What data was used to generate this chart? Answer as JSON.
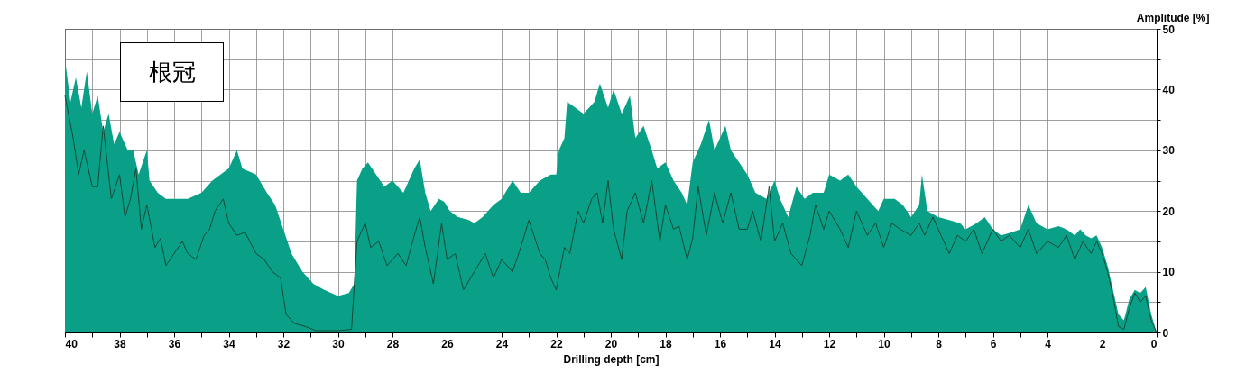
{
  "chart_data": {
    "type": "line",
    "xlabel": "Drilling depth [cm]",
    "ylabel": "Amplitude [%]",
    "annotations": [
      "根冠"
    ],
    "xlim": [
      40,
      0
    ],
    "ylim": [
      0,
      50
    ],
    "xticks": [
      40,
      {
        "value": 39,
        "label": null
      },
      38,
      {
        "value": 37,
        "label": null
      },
      36,
      {
        "value": 35,
        "label": null
      },
      34,
      {
        "value": 33,
        "label": null
      },
      32,
      {
        "value": 31,
        "label": null
      },
      30,
      {
        "value": 29,
        "label": null
      },
      28,
      {
        "value": 27,
        "label": null
      },
      26,
      {
        "value": 25,
        "label": null
      },
      24,
      {
        "value": 23,
        "label": null
      },
      22,
      {
        "value": 21,
        "label": null
      },
      20,
      {
        "value": 19,
        "label": null
      },
      18,
      {
        "value": 17,
        "label": null
      },
      16,
      {
        "value": 15,
        "label": null
      },
      14,
      {
        "value": 13,
        "label": null
      },
      12,
      {
        "value": 11,
        "label": null
      },
      10,
      {
        "value": 9,
        "label": null
      },
      8,
      {
        "value": 7,
        "label": null
      },
      6,
      {
        "value": 5,
        "label": null
      },
      4,
      {
        "value": 3,
        "label": null
      },
      2,
      {
        "value": 1,
        "label": null
      },
      0
    ],
    "yticks": [
      0,
      {
        "value": 5,
        "label": null
      },
      10,
      {
        "value": 15,
        "label": null
      },
      20,
      {
        "value": 25,
        "label": null
      },
      30,
      {
        "value": 35,
        "label": null
      },
      40,
      {
        "value": 45,
        "label": null
      },
      50
    ],
    "grid": true,
    "series": [
      {
        "type": "area",
        "color": "#09a087",
        "x": [
          40,
          39.8,
          39.6,
          39.4,
          39.2,
          39,
          38.8,
          38.6,
          38.4,
          38.2,
          38,
          37.7,
          37.5,
          37.3,
          37,
          36.9,
          36.6,
          36.3,
          36,
          35.5,
          35,
          34.6,
          34.3,
          34,
          33.7,
          33.5,
          33,
          32.6,
          32.3,
          32,
          31.7,
          31.3,
          30.9,
          30.5,
          30,
          29.6,
          29.4,
          29.3,
          29.1,
          28.9,
          28.6,
          28.3,
          28,
          27.6,
          27.4,
          27.2,
          27,
          26.8,
          26.6,
          26.3,
          26.1,
          25.9,
          25.6,
          25.2,
          25,
          24.7,
          24.3,
          24,
          23.6,
          23.3,
          23,
          22.6,
          22.2,
          22,
          21.9,
          21.7,
          21.6,
          21.3,
          21,
          20.6,
          20.4,
          20.1,
          19.9,
          19.6,
          19.3,
          19.1,
          18.8,
          18.5,
          18.3,
          18,
          17.7,
          17.4,
          17.2,
          17,
          16.7,
          16.4,
          16.2,
          15.8,
          15.6,
          15.3,
          15,
          14.7,
          14.3,
          14,
          13.8,
          13.5,
          13.2,
          12.9,
          12.6,
          12.2,
          12,
          11.6,
          11.3,
          11,
          10.6,
          10.2,
          10,
          9.6,
          9.3,
          9,
          8.7,
          8.6,
          8.4,
          8,
          7.6,
          7.2,
          7,
          6.6,
          6.3,
          6,
          5.7,
          5.3,
          5,
          4.7,
          4.4,
          4,
          3.6,
          3.3,
          3,
          2.8,
          2.6,
          2.4,
          2.2,
          2,
          1.8,
          1.6,
          1.4,
          1.2,
          1,
          0.8,
          0.6,
          0.4,
          0.2,
          0
        ],
        "values": [
          45,
          38,
          42,
          37,
          43,
          36,
          39,
          33,
          36,
          31,
          33,
          30,
          30,
          26,
          30,
          25,
          23,
          22,
          22,
          22,
          23,
          25,
          26,
          27,
          30,
          27,
          26,
          23,
          21,
          17,
          13,
          10,
          8,
          7,
          6,
          6.5,
          8,
          25,
          27,
          28,
          26,
          24,
          25,
          23,
          25,
          27,
          28.5,
          23,
          20,
          22,
          21.5,
          20,
          19,
          18.5,
          18,
          19,
          21,
          22,
          25,
          23,
          23,
          25,
          26,
          26,
          30,
          32,
          38,
          37,
          36,
          38,
          41,
          37,
          40,
          36,
          39,
          32,
          34,
          30,
          27,
          28,
          25,
          23,
          21,
          28,
          31,
          35,
          30,
          34,
          30,
          28,
          26,
          23,
          22,
          25,
          22,
          19,
          24,
          22,
          23,
          23,
          26,
          25,
          26,
          24,
          22,
          20,
          22,
          22,
          21,
          19,
          21,
          26,
          20,
          19,
          18.5,
          18,
          17,
          18,
          19,
          17,
          16,
          16.5,
          17,
          21,
          18,
          17,
          17.5,
          17,
          16,
          17,
          16,
          15.5,
          16,
          14,
          11,
          7,
          3,
          2,
          5.5,
          7,
          6.5,
          7.5,
          3,
          0
        ]
      },
      {
        "color": "#17402f",
        "x": [
          40,
          39.7,
          39.5,
          39.3,
          39,
          38.8,
          38.6,
          38.3,
          38,
          37.8,
          37.6,
          37.4,
          37.2,
          37,
          36.7,
          36.5,
          36.3,
          36,
          35.7,
          35.5,
          35.2,
          34.9,
          34.7,
          34.5,
          34.2,
          34,
          33.7,
          33.4,
          33,
          32.7,
          32.4,
          32.1,
          31.9,
          31.6,
          31.2,
          30.8,
          30,
          29.5,
          29.3,
          29,
          28.8,
          28.5,
          28.2,
          27.8,
          27.5,
          27.2,
          27,
          26.8,
          26.5,
          26.2,
          26,
          25.7,
          25.4,
          25,
          24.6,
          24.3,
          24,
          23.6,
          23.3,
          23,
          22.6,
          22.4,
          22.2,
          22,
          21.7,
          21.5,
          21.2,
          21,
          20.7,
          20.5,
          20.3,
          20.1,
          19.9,
          19.6,
          19.4,
          19.1,
          18.8,
          18.5,
          18.2,
          18,
          17.7,
          17.5,
          17.2,
          17,
          16.8,
          16.5,
          16.2,
          15.9,
          15.6,
          15.3,
          15,
          14.8,
          14.5,
          14.2,
          14,
          13.7,
          13.4,
          13,
          12.7,
          12.5,
          12.2,
          12,
          11.6,
          11.3,
          11,
          10.6,
          10.3,
          10,
          9.7,
          9.4,
          9,
          8.7,
          8.5,
          8.2,
          8,
          7.6,
          7.3,
          7,
          6.7,
          6.4,
          6,
          5.7,
          5.4,
          5,
          4.7,
          4.4,
          4,
          3.6,
          3.3,
          3,
          2.7,
          2.4,
          2.2,
          2,
          1.8,
          1.6,
          1.4,
          1.2,
          1,
          0.8,
          0.6,
          0.4,
          0.2,
          0
        ],
        "values": [
          39,
          32,
          26,
          30,
          24,
          24,
          34,
          22,
          26,
          19,
          22,
          27,
          17,
          21,
          14,
          15.5,
          11,
          13,
          15,
          13,
          12,
          16,
          17,
          20,
          22,
          18,
          16,
          16.5,
          13,
          12,
          10,
          9,
          3,
          1.5,
          1,
          0.3,
          0.3,
          0.5,
          15,
          18,
          14,
          15,
          11,
          13,
          11,
          16,
          19,
          14,
          8,
          18,
          12,
          13,
          7,
          10,
          13,
          9,
          12,
          10,
          14,
          18.5,
          13,
          12,
          9,
          7,
          14,
          13,
          20,
          18,
          22,
          23,
          18,
          25,
          17,
          12,
          20,
          23,
          18,
          25,
          15,
          21,
          17,
          17.5,
          12,
          15.5,
          24,
          16,
          23,
          18,
          23,
          17,
          17,
          20,
          15,
          24,
          15,
          18,
          13,
          11,
          16,
          21,
          17,
          20,
          17,
          14,
          20,
          16,
          18,
          14,
          18,
          17,
          16,
          18,
          16,
          19,
          17,
          13,
          16,
          15,
          17,
          13,
          17,
          15,
          16,
          14,
          17,
          13,
          15,
          14,
          16,
          12,
          15,
          13,
          15,
          13,
          10,
          6,
          1,
          0.5,
          4,
          6.5,
          5,
          6,
          2,
          0
        ]
      }
    ]
  }
}
